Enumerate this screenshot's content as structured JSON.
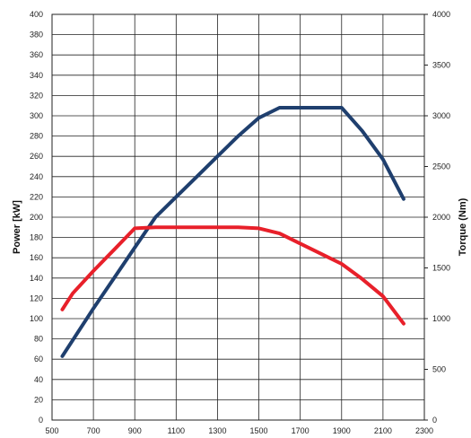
{
  "chart_data": {
    "type": "line",
    "title": "",
    "xlabel": "",
    "ylabel": "Power [kW]",
    "y2label": "Torque (Nm)",
    "xlim": [
      500,
      2300
    ],
    "ylim": [
      0,
      400
    ],
    "y2lim": [
      0,
      4000
    ],
    "grid": true,
    "legend": "none",
    "x_ticks": [
      500,
      700,
      900,
      1100,
      1300,
      1500,
      1700,
      1900,
      2100,
      2300
    ],
    "y_ticks": [
      0,
      20,
      40,
      60,
      80,
      100,
      120,
      140,
      160,
      180,
      200,
      220,
      240,
      260,
      280,
      300,
      320,
      340,
      360,
      380,
      400
    ],
    "y2_ticks": [
      0,
      500,
      1000,
      1500,
      2000,
      2500,
      3000,
      3500,
      4000
    ],
    "series": [
      {
        "axis": "left",
        "color": "#1f3f6e",
        "x": [
          550,
          700,
          800,
          900,
          1000,
          1100,
          1200,
          1300,
          1400,
          1500,
          1600,
          1700,
          1800,
          1900,
          2000,
          2100,
          2200
        ],
        "y": [
          63,
          110,
          140,
          170,
          200,
          220,
          240,
          260,
          280,
          298,
          308,
          308,
          308,
          308,
          285,
          257,
          218
        ]
      },
      {
        "axis": "left",
        "color": "#e8202a",
        "x": [
          550,
          600,
          700,
          800,
          900,
          1000,
          1100,
          1200,
          1300,
          1400,
          1500,
          1600,
          1700,
          1800,
          1900,
          2000,
          2100,
          2200
        ],
        "y": [
          109,
          125,
          147,
          168,
          189,
          190,
          190,
          190,
          190,
          190,
          189,
          184,
          174,
          164,
          154,
          139,
          122,
          95
        ]
      }
    ]
  }
}
